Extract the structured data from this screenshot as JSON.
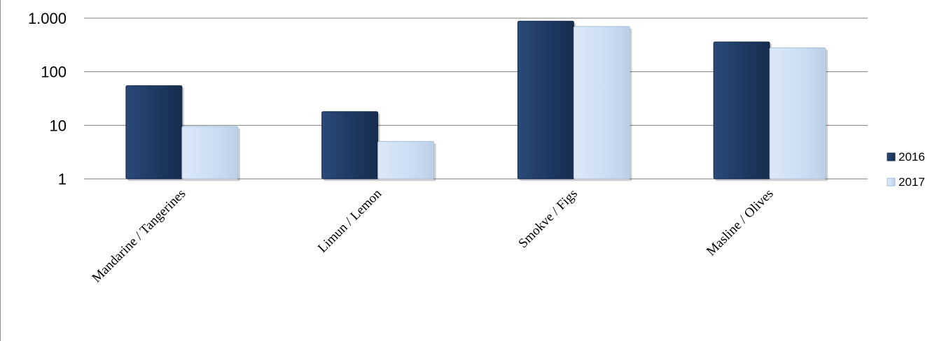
{
  "chart_data": {
    "type": "bar",
    "y_scale": "log",
    "ylim": [
      1,
      1000
    ],
    "y_ticks": [
      {
        "value": 1,
        "label": "1"
      },
      {
        "value": 10,
        "label": "10"
      },
      {
        "value": 100,
        "label": "100"
      },
      {
        "value": 1000,
        "label": "1.000"
      }
    ],
    "grid": true,
    "legend_position": "right",
    "categories": [
      "Mandarine / Tangerines",
      "Limun / Lemon",
      "Smokve / Figs",
      "Masline / Olives"
    ],
    "series": [
      {
        "name": "2016",
        "color": "#1f3a63",
        "values": [
          55,
          18,
          880,
          360
        ]
      },
      {
        "name": "2017",
        "color": "#cfe0f5",
        "values": [
          9.5,
          5,
          700,
          280
        ]
      }
    ]
  }
}
